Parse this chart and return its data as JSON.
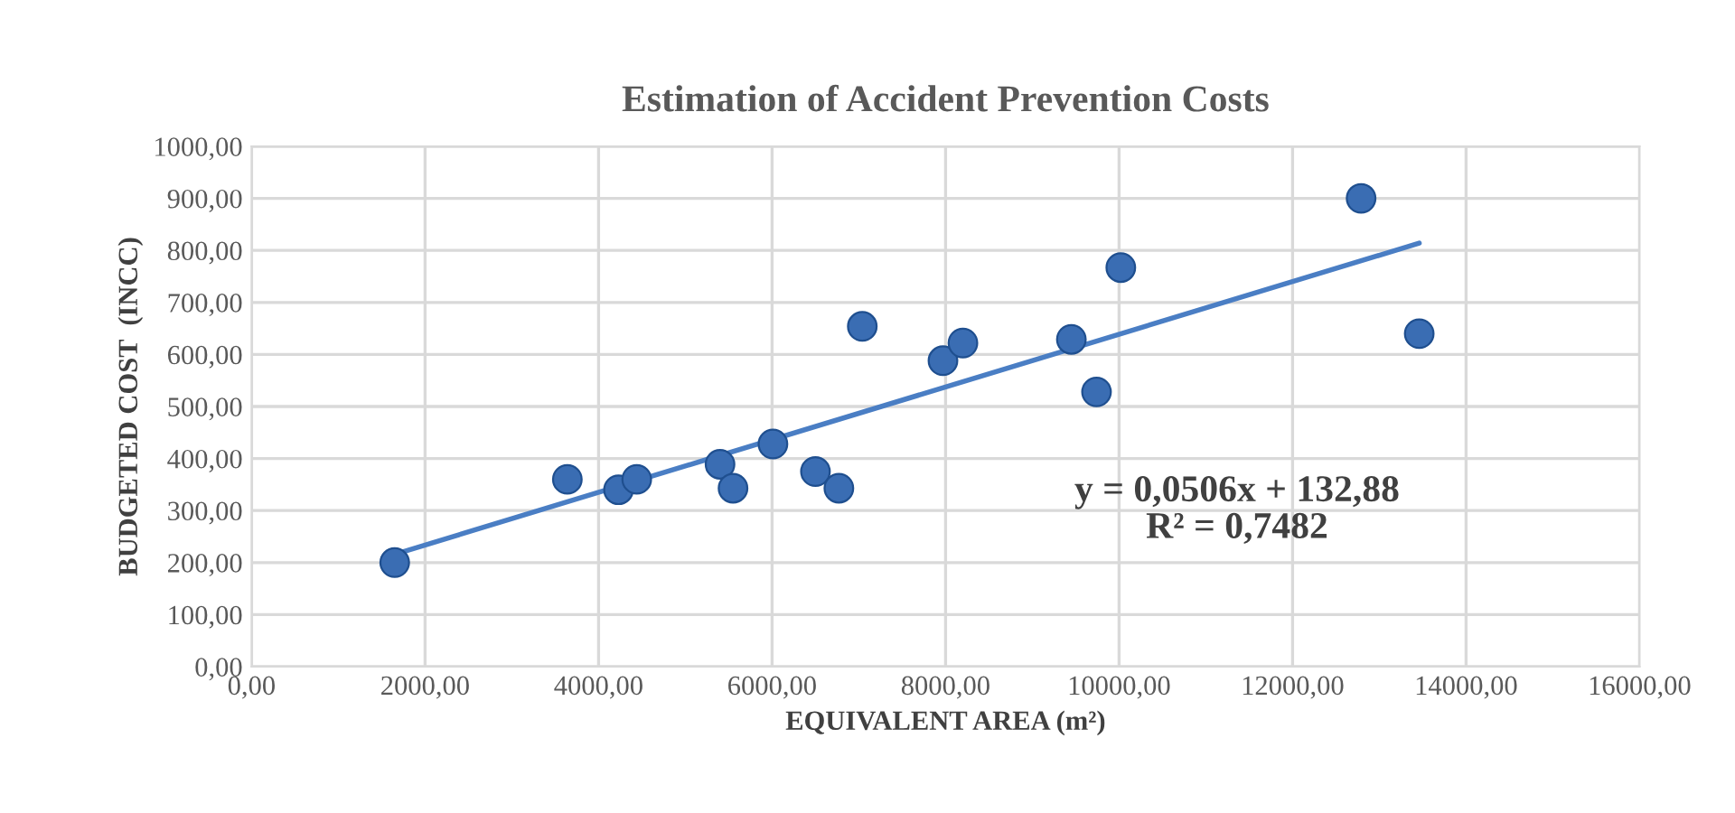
{
  "chart_data": {
    "type": "scatter",
    "title": "Estimation of Accident Prevention Costs",
    "xlabel": "EQUIVALENT AREA (m²)",
    "ylabel": "BUDGETED COST  (INCC)",
    "series": [
      {
        "color": "#3a6db3",
        "marker": "circle",
        "x": [
          1650,
          3640,
          4230,
          4440,
          5400,
          5550,
          6010,
          6500,
          6770,
          7040,
          7970,
          8200,
          9450,
          9740,
          10020,
          12790,
          13460
        ],
        "values": [
          200,
          360,
          340,
          360,
          389,
          343,
          428,
          375,
          343,
          654,
          588,
          622,
          629,
          528,
          767,
          900,
          640
        ]
      },
      {
        "type": "line",
        "color": "#4a7ec4",
        "line_style": "solid",
        "x": [
          1650,
          13460
        ],
        "values": [
          216,
          814
        ]
      }
    ],
    "xlim": [
      0,
      16000
    ],
    "ylim": [
      0,
      1000
    ],
    "xticks": [
      {
        "value": 0,
        "label": "0,00"
      },
      {
        "value": 2000,
        "label": "2000,00"
      },
      {
        "value": 4000,
        "label": "4000,00"
      },
      {
        "value": 6000,
        "label": "6000,00"
      },
      {
        "value": 8000,
        "label": "8000,00"
      },
      {
        "value": 10000,
        "label": "10000,00"
      },
      {
        "value": 12000,
        "label": "12000,00"
      },
      {
        "value": 14000,
        "label": "14000,00"
      },
      {
        "value": 16000,
        "label": "16000,00"
      }
    ],
    "yticks": [
      {
        "value": 0,
        "label": "0,00"
      },
      {
        "value": 100,
        "label": "100,00"
      },
      {
        "value": 200,
        "label": "200,00"
      },
      {
        "value": 300,
        "label": "300,00"
      },
      {
        "value": 400,
        "label": "400,00"
      },
      {
        "value": 500,
        "label": "500,00"
      },
      {
        "value": 600,
        "label": "600,00"
      },
      {
        "value": 700,
        "label": "700,00"
      },
      {
        "value": 800,
        "label": "800,00"
      },
      {
        "value": 900,
        "label": "900,00"
      },
      {
        "value": 1000,
        "label": "1000,00"
      }
    ],
    "annotations": [
      "y = 0,0506x + 132,88\nR² = 0,7482"
    ],
    "grid": true,
    "legend": false
  }
}
